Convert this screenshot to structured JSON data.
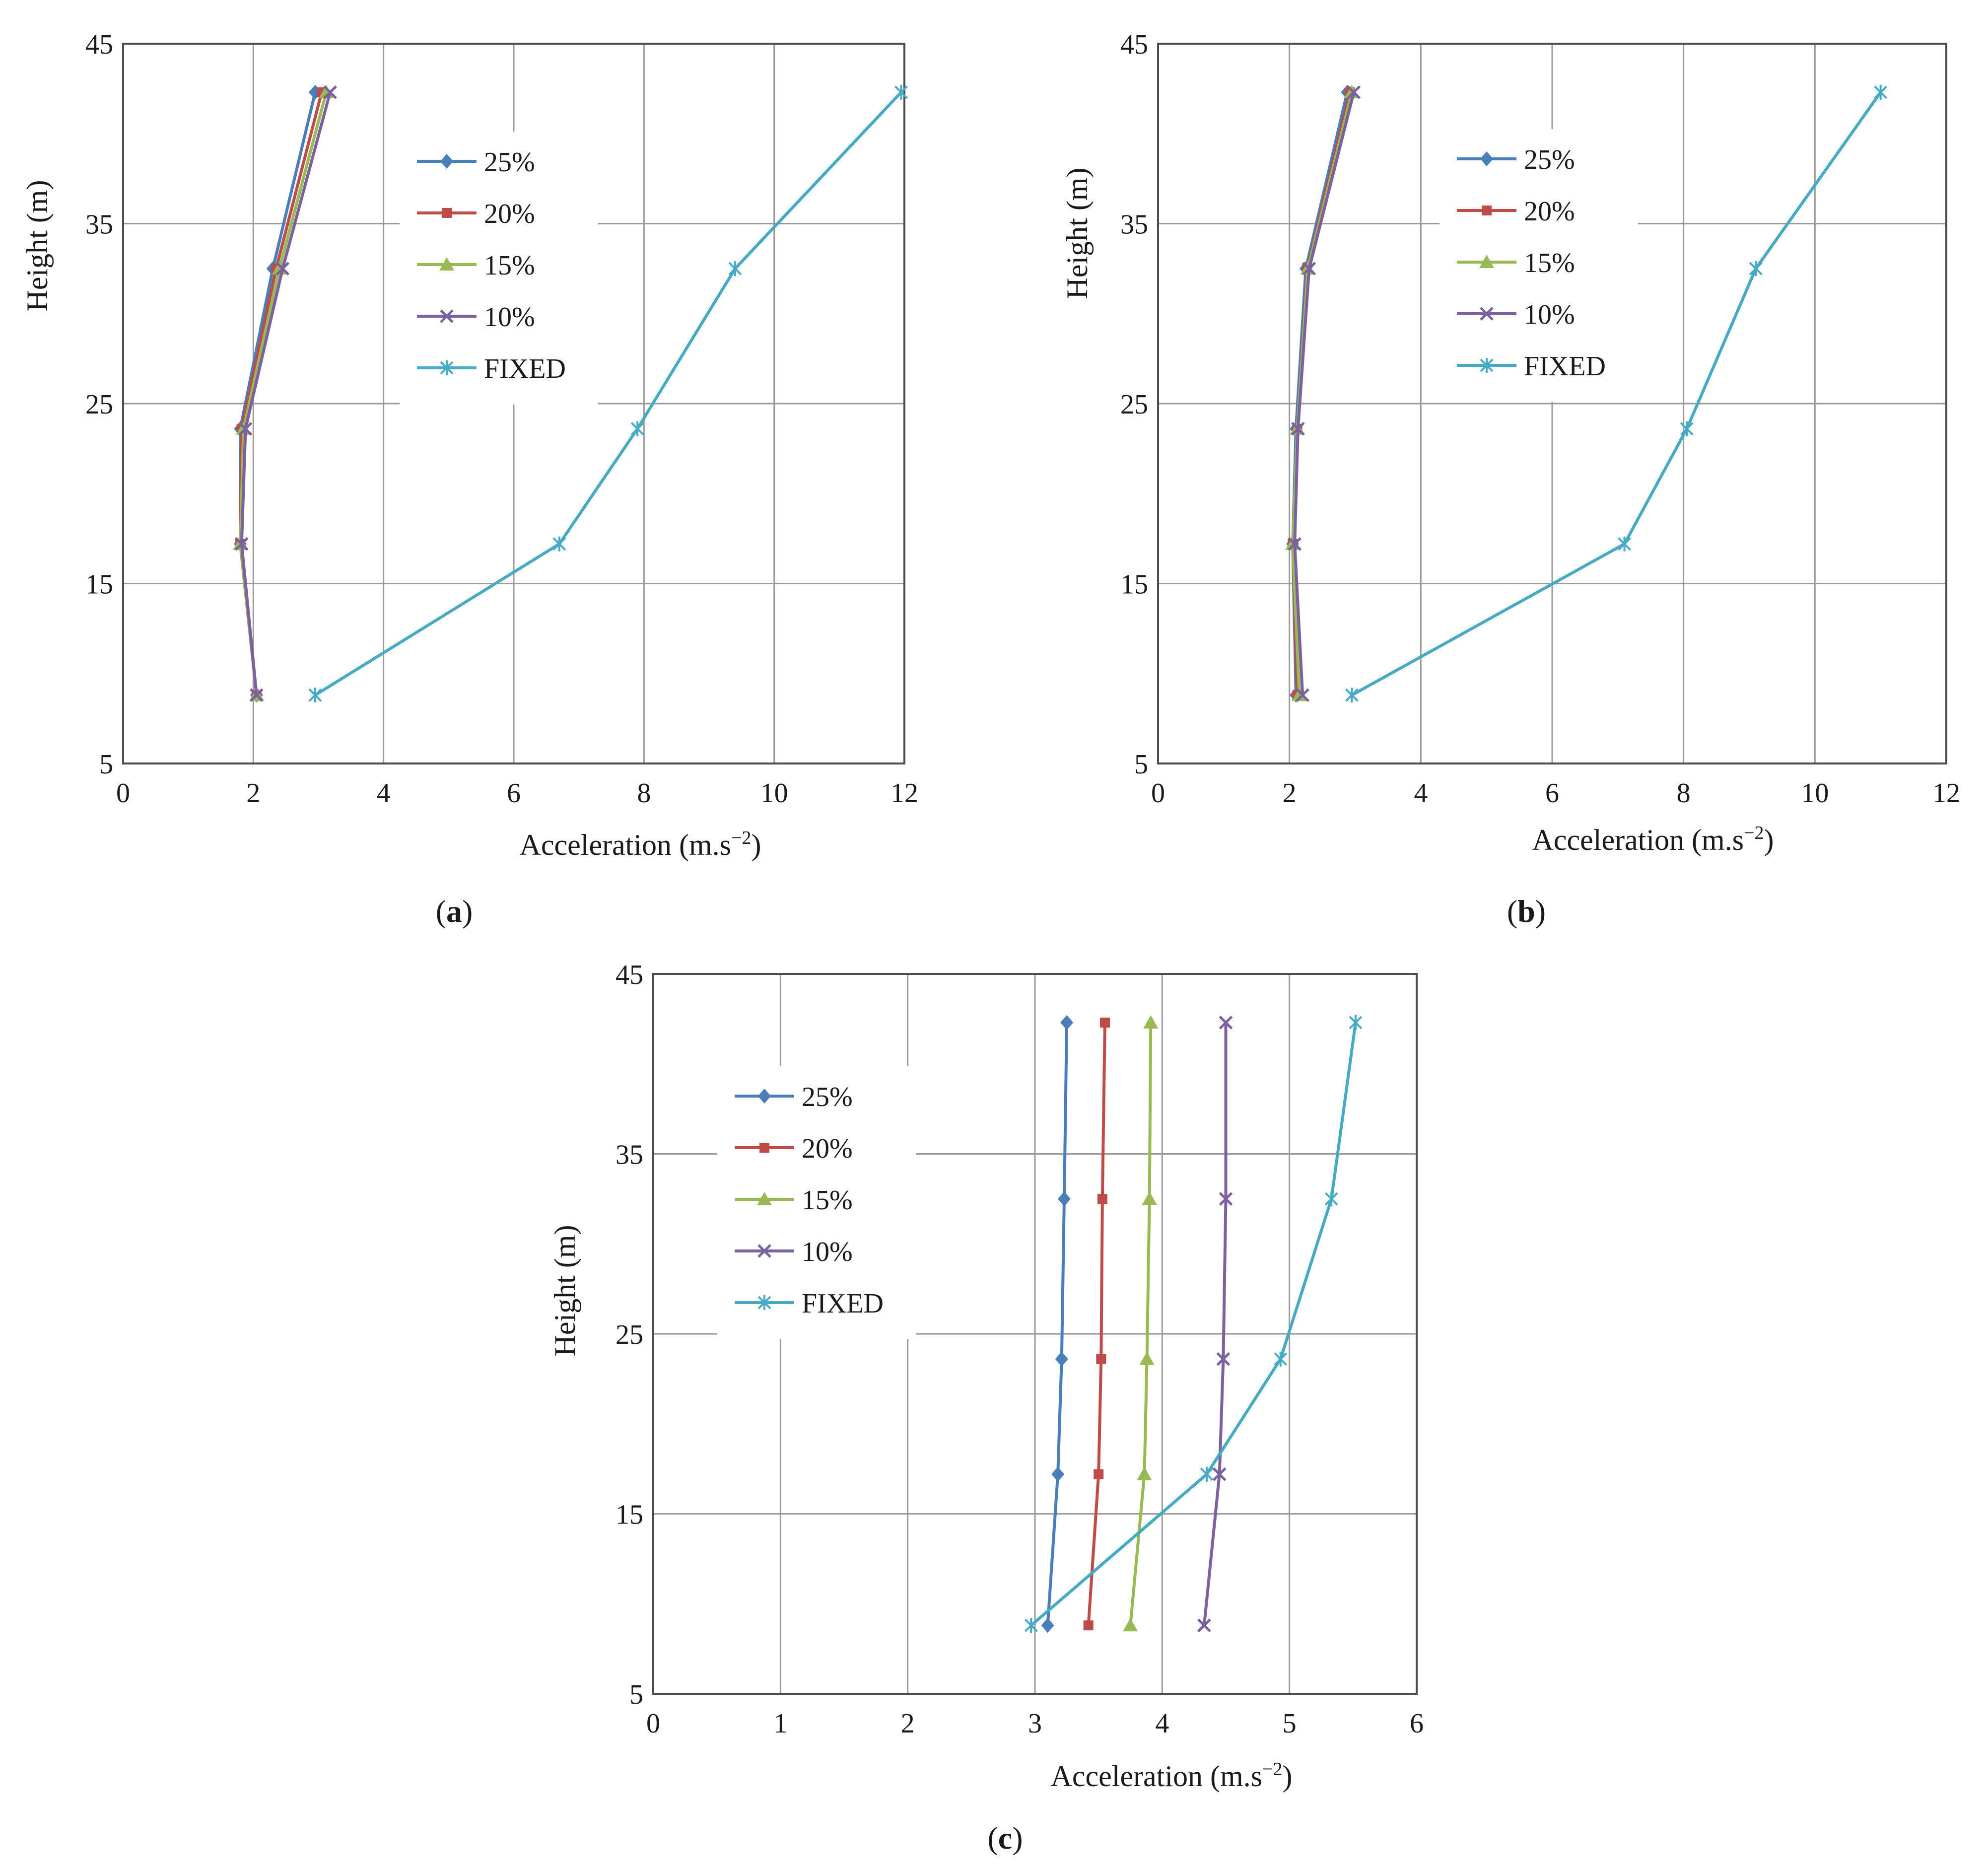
{
  "figure": {
    "series_styles": [
      {
        "name": "25%",
        "color": "#4a7ebb",
        "marker": "diamond"
      },
      {
        "name": "20%",
        "color": "#be4b48",
        "marker": "square"
      },
      {
        "name": "15%",
        "color": "#98b954",
        "marker": "triangle"
      },
      {
        "name": "10%",
        "color": "#7d60a0",
        "marker": "x"
      },
      {
        "name": "FIXED",
        "color": "#46aac5",
        "marker": "star"
      }
    ]
  },
  "chart_data": [
    {
      "type": "line",
      "panel": "a",
      "caption": "a",
      "xlabel": "Acceleration (m.s",
      "xlabel_sup": "−2",
      "xlabel_close": ")",
      "ylabel": "Height (m)",
      "xlim": [
        0,
        12
      ],
      "ylim": [
        5,
        45
      ],
      "xticks": [
        "0",
        "2",
        "4",
        "6",
        "8",
        "10",
        "12"
      ],
      "yticks": [
        "5",
        "15",
        "25",
        "35",
        "45"
      ],
      "y": [
        8.8,
        17.2,
        23.6,
        32.5,
        42.3
      ],
      "series": [
        {
          "name": "25%",
          "values": [
            2.05,
            1.8,
            1.8,
            2.3,
            2.95
          ]
        },
        {
          "name": "20%",
          "values": [
            2.05,
            1.8,
            1.82,
            2.35,
            3.05
          ]
        },
        {
          "name": "15%",
          "values": [
            2.05,
            1.8,
            1.85,
            2.4,
            3.12
          ]
        },
        {
          "name": "10%",
          "values": [
            2.05,
            1.82,
            1.88,
            2.45,
            3.18
          ]
        },
        {
          "name": "FIXED",
          "values": [
            2.95,
            6.7,
            7.9,
            9.4,
            11.95
          ]
        }
      ]
    },
    {
      "type": "line",
      "panel": "b",
      "caption": "b",
      "xlabel": "Acceleration (m.s",
      "xlabel_sup": "−2",
      "xlabel_close": ")",
      "ylabel": "Height (m)",
      "xlim": [
        0,
        12
      ],
      "ylim": [
        5,
        45
      ],
      "xticks": [
        "0",
        "2",
        "4",
        "6",
        "8",
        "10",
        "12"
      ],
      "yticks": [
        "5",
        "15",
        "25",
        "35",
        "45"
      ],
      "y": [
        8.8,
        17.2,
        23.6,
        32.5,
        42.3
      ],
      "series": [
        {
          "name": "25%",
          "values": [
            2.1,
            2.05,
            2.1,
            2.25,
            2.88
          ]
        },
        {
          "name": "20%",
          "values": [
            2.12,
            2.05,
            2.12,
            2.27,
            2.92
          ]
        },
        {
          "name": "15%",
          "values": [
            2.15,
            2.05,
            2.12,
            2.28,
            2.95
          ]
        },
        {
          "name": "10%",
          "values": [
            2.2,
            2.08,
            2.13,
            2.3,
            2.98
          ]
        },
        {
          "name": "FIXED",
          "values": [
            2.95,
            7.1,
            8.05,
            9.1,
            11.0
          ]
        }
      ]
    },
    {
      "type": "line",
      "panel": "c",
      "caption": "c",
      "xlabel": "Acceleration (m.s",
      "xlabel_sup": "−2",
      "xlabel_close": ")",
      "ylabel": "Height (m)",
      "xlim": [
        0,
        6
      ],
      "ylim": [
        5,
        45
      ],
      "xticks": [
        "0",
        "1",
        "2",
        "3",
        "4",
        "5",
        "6"
      ],
      "yticks": [
        "5",
        "15",
        "25",
        "35",
        "45"
      ],
      "y": [
        8.8,
        17.2,
        23.6,
        32.5,
        42.3
      ],
      "series": [
        {
          "name": "25%",
          "values": [
            3.1,
            3.18,
            3.21,
            3.23,
            3.25
          ]
        },
        {
          "name": "20%",
          "values": [
            3.42,
            3.5,
            3.52,
            3.53,
            3.55
          ]
        },
        {
          "name": "15%",
          "values": [
            3.75,
            3.86,
            3.88,
            3.9,
            3.91
          ]
        },
        {
          "name": "10%",
          "values": [
            4.33,
            4.45,
            4.48,
            4.5,
            4.5
          ]
        },
        {
          "name": "FIXED",
          "values": [
            2.97,
            4.35,
            4.93,
            5.33,
            5.52
          ]
        }
      ]
    }
  ]
}
